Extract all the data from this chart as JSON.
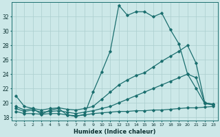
{
  "xlabel": "Humidex (Indice chaleur)",
  "bg_color": "#cce8e8",
  "line_color": "#1a6e6e",
  "grid_color": "#aacece",
  "xlim": [
    -0.5,
    23.5
  ],
  "ylim": [
    17.5,
    34.0
  ],
  "xticks": [
    0,
    1,
    2,
    3,
    4,
    5,
    6,
    7,
    8,
    9,
    10,
    11,
    12,
    13,
    14,
    15,
    16,
    17,
    18,
    19,
    20,
    21,
    22,
    23
  ],
  "yticks": [
    18,
    20,
    22,
    24,
    26,
    28,
    30,
    32
  ],
  "series1_x": [
    0,
    1,
    2,
    3,
    4,
    5,
    6,
    7,
    8,
    9,
    10,
    11,
    12,
    13,
    14,
    15,
    16,
    17,
    18,
    19,
    20,
    21,
    22,
    23
  ],
  "series1_y": [
    21.0,
    19.5,
    19.2,
    18.4,
    19.0,
    19.2,
    18.3,
    18.1,
    18.4,
    21.5,
    24.3,
    27.2,
    33.6,
    32.2,
    32.7,
    32.7,
    32.0,
    32.5,
    30.2,
    28.2,
    24.0,
    23.5,
    20.0,
    19.8
  ],
  "series2_x": [
    0,
    1,
    2,
    3,
    4,
    5,
    6,
    7,
    8,
    9,
    10,
    11,
    12,
    13,
    14,
    15,
    16,
    17,
    18,
    19,
    20,
    21,
    22,
    23
  ],
  "series2_y": [
    19.5,
    19.0,
    19.2,
    19.0,
    19.2,
    19.3,
    19.1,
    19.0,
    19.2,
    19.5,
    20.5,
    21.5,
    22.5,
    23.2,
    23.8,
    24.2,
    25.0,
    25.8,
    26.5,
    27.2,
    28.0,
    25.5,
    20.0,
    19.8
  ],
  "series3_x": [
    0,
    1,
    2,
    3,
    4,
    5,
    6,
    7,
    8,
    9,
    10,
    11,
    12,
    13,
    14,
    15,
    16,
    17,
    18,
    19,
    20,
    21,
    22,
    23
  ],
  "series3_y": [
    19.2,
    18.8,
    19.0,
    18.7,
    18.8,
    18.9,
    18.7,
    18.5,
    18.7,
    18.9,
    19.2,
    19.5,
    20.0,
    20.5,
    21.0,
    21.5,
    22.0,
    22.5,
    23.0,
    23.5,
    24.0,
    22.0,
    19.9,
    19.7
  ],
  "series4_x": [
    0,
    1,
    2,
    3,
    4,
    5,
    6,
    7,
    8,
    9,
    10,
    11,
    12,
    13,
    14,
    15,
    16,
    17,
    18,
    19,
    20,
    21,
    22,
    23
  ],
  "series4_y": [
    18.8,
    18.5,
    18.5,
    18.4,
    18.5,
    18.5,
    18.3,
    18.2,
    18.3,
    18.5,
    18.6,
    18.7,
    18.8,
    18.8,
    18.9,
    18.9,
    19.0,
    19.0,
    19.1,
    19.2,
    19.3,
    19.3,
    19.4,
    19.5
  ]
}
